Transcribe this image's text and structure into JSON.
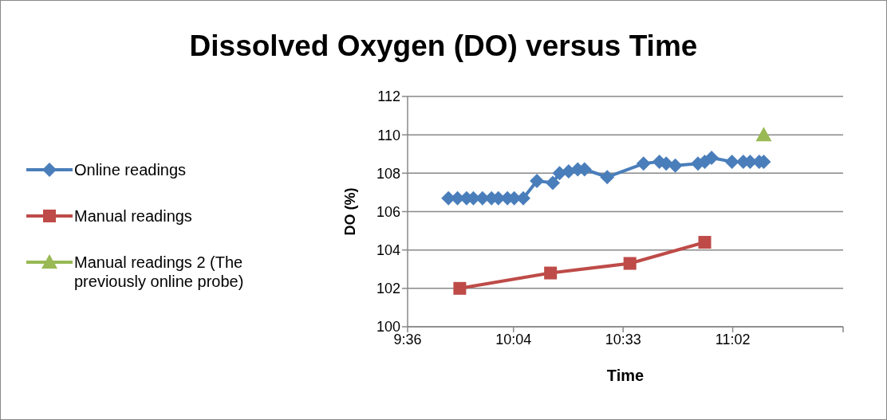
{
  "chart_data": {
    "type": "line",
    "title": "Dissolved Oxygen (DO) versus Time",
    "xlabel": "Time",
    "ylabel": "DO (%)",
    "xlim": [
      9.6,
      11.52
    ],
    "xticks": [
      {
        "value": 9.6,
        "label": "9:36"
      },
      {
        "value": 10.0667,
        "label": "10:04"
      },
      {
        "value": 10.55,
        "label": "10:33"
      },
      {
        "value": 11.0333,
        "label": "11:02"
      },
      {
        "value": 11.52,
        "label": null
      }
    ],
    "ylim": [
      100,
      112
    ],
    "yticks": [
      100,
      102,
      104,
      106,
      108,
      110,
      112
    ],
    "grid": "y",
    "legend": "left",
    "series": [
      {
        "name": "Online readings",
        "color": "#4a7ebb",
        "marker": "diamond",
        "x": [
          9.78,
          9.82,
          9.86,
          9.89,
          9.93,
          9.97,
          10.0,
          10.04,
          10.07,
          10.11,
          10.17,
          10.24,
          10.27,
          10.31,
          10.35,
          10.38,
          10.48,
          10.64,
          10.71,
          10.74,
          10.78,
          10.88,
          10.91,
          10.94,
          11.03,
          11.08,
          11.11,
          11.15,
          11.17
        ],
        "values": [
          106.7,
          106.7,
          106.7,
          106.7,
          106.7,
          106.7,
          106.7,
          106.7,
          106.7,
          106.7,
          107.6,
          107.5,
          108.0,
          108.1,
          108.2,
          108.2,
          107.8,
          108.5,
          108.6,
          108.5,
          108.4,
          108.5,
          108.6,
          108.8,
          108.6,
          108.6,
          108.6,
          108.6,
          108.6
        ]
      },
      {
        "name": "Manual readings",
        "color": "#be4b48",
        "marker": "square",
        "x": [
          9.83,
          10.23,
          10.58,
          10.91
        ],
        "values": [
          102.0,
          102.8,
          103.3,
          104.4
        ]
      },
      {
        "name": "Manual readings 2 (The previously online probe)",
        "color": "#98b954",
        "marker": "triangle",
        "x": [
          11.17
        ],
        "values": [
          110.0
        ]
      }
    ]
  }
}
